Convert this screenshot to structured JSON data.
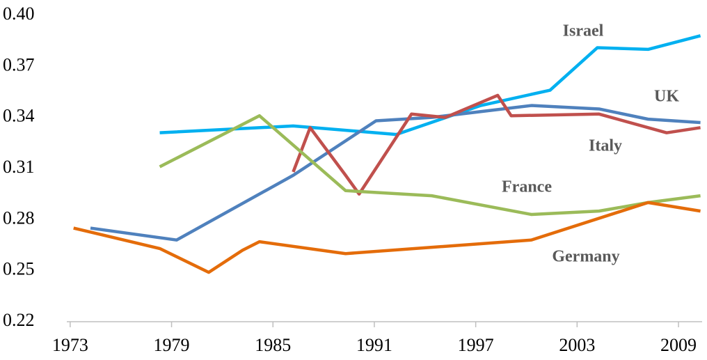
{
  "chart_data": {
    "type": "line",
    "xlim": [
      1972.8,
      2010.4
    ],
    "xticks": [
      1973,
      1979,
      1985,
      1991,
      1997,
      2003,
      2009
    ],
    "ylim": [
      0.22,
      0.4
    ],
    "yticks": [
      0.22,
      0.25,
      0.28,
      0.31,
      0.34,
      0.37,
      {
        "value": 0.4,
        "label": "0.40"
      }
    ],
    "grid": false,
    "series": [
      {
        "name": "Israel",
        "color": "#00b0f0",
        "x": [
          1978.3,
          1986.2,
          1992.3,
          1997.3,
          2001.4,
          2004.2,
          2007.2,
          2010.3
        ],
        "values": [
          0.331,
          0.335,
          0.33,
          0.347,
          0.356,
          0.381,
          0.38,
          0.388
        ]
      },
      {
        "name": "UK",
        "color": "#4f81bd",
        "x": [
          1974.2,
          1979.3,
          1986.2,
          1991.1,
          1994.4,
          2000.3,
          2004.3,
          2007.2,
          2010.3
        ],
        "values": [
          0.275,
          0.268,
          0.306,
          0.338,
          0.34,
          0.347,
          0.345,
          0.339,
          0.337
        ]
      },
      {
        "name": "Italy",
        "color": "#c0504d",
        "x": [
          1986.2,
          1987.2,
          1989.3,
          1990.1,
          1993.2,
          1995.2,
          1998.3,
          1999.1,
          2004.3,
          2008.3,
          2010.3
        ],
        "values": [
          0.308,
          0.334,
          0.306,
          0.295,
          0.342,
          0.34,
          0.353,
          0.341,
          0.342,
          0.331,
          0.334
        ]
      },
      {
        "name": "France",
        "color": "#9bbb59",
        "x": [
          1978.3,
          1984.2,
          1989.3,
          1994.4,
          2000.3,
          2004.3,
          2007.2,
          2010.3
        ],
        "values": [
          0.311,
          0.341,
          0.297,
          0.294,
          0.283,
          0.285,
          0.29,
          0.294
        ]
      },
      {
        "name": "Germany",
        "color": "#e46c0a",
        "x": [
          1973.2,
          1978.3,
          1981.2,
          1983.2,
          1984.2,
          1989.3,
          2000.3,
          2007.2,
          2010.3
        ],
        "values": [
          0.275,
          0.263,
          0.249,
          0.262,
          0.267,
          0.26,
          0.268,
          0.29,
          0.285
        ]
      }
    ]
  }
}
